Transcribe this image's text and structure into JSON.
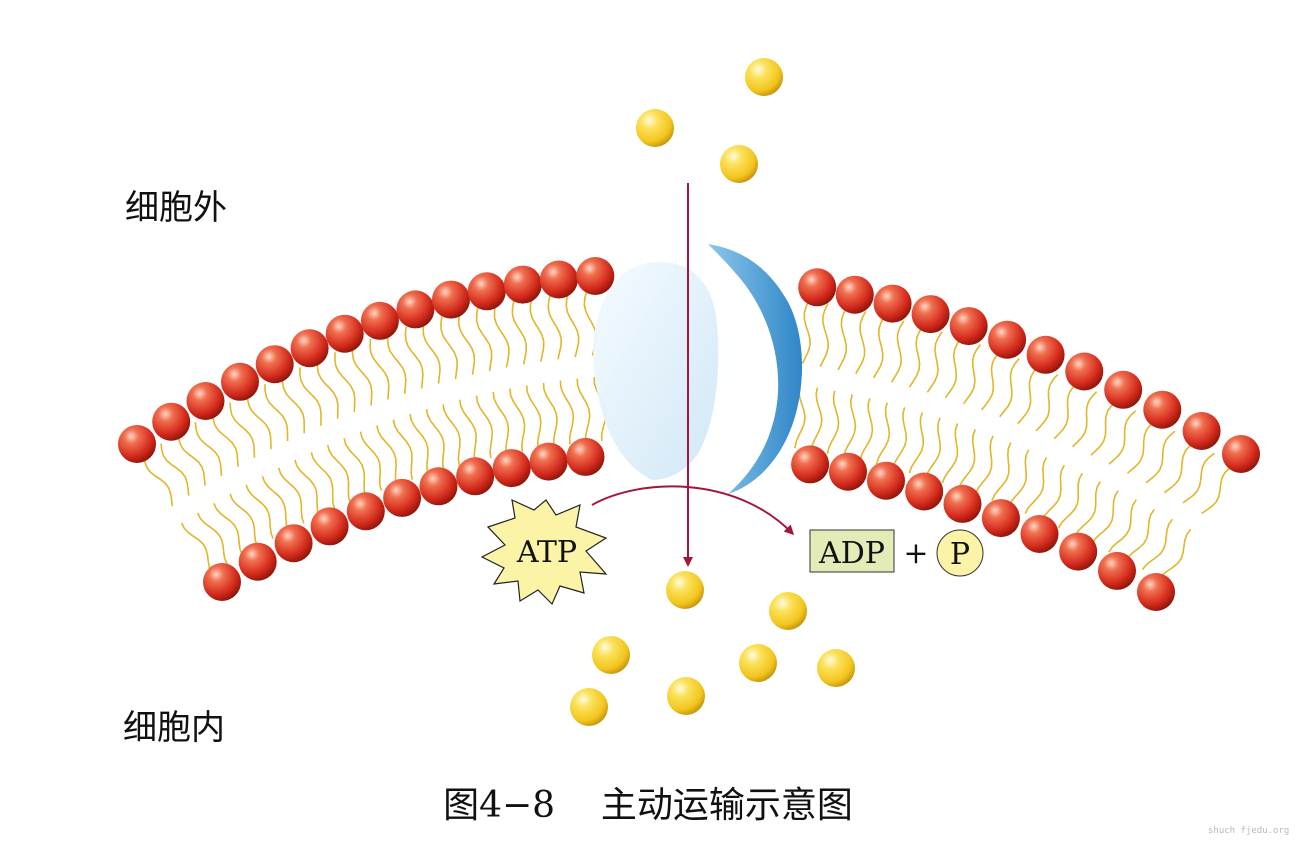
{
  "labels": {
    "outside": "细胞外",
    "inside": "细胞内"
  },
  "energy": {
    "atp": "ATP",
    "adp": "ADP",
    "plus": "+",
    "phosphate": "P"
  },
  "caption": {
    "figure_number": "图4−8",
    "title": "主动运输示意图"
  },
  "watermark": "shuch fjedu.org",
  "colors": {
    "phospholipid_head": "#d42a1c",
    "tail": "#e1b62a",
    "molecule": "#f2c51e",
    "protein": "#4f9fd6",
    "arrow": "#a3163a",
    "atp_fill": "#fbf3a6",
    "adp_fill": "#e3ecb6"
  }
}
